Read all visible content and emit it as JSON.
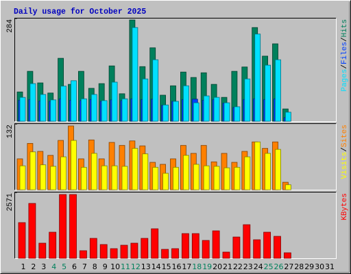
{
  "chart_data": [
    {
      "type": "bar",
      "title": "Daily usage for October 2025",
      "legend_separator": "/",
      "ylim": [
        0,
        284
      ],
      "yticks": [
        284
      ],
      "series": [
        {
          "name": "Hits",
          "color": "#00805c",
          "values": [
            81,
            138,
            106,
            78,
            174,
            102,
            138,
            91,
            104,
            153,
            76,
            280,
            151,
            203,
            72,
            98,
            136,
            121,
            134,
            102,
            66,
            138,
            150,
            259,
            180,
            214,
            34,
            0,
            0,
            0,
            0
          ]
        },
        {
          "name": "Files",
          "color": "#0040ff",
          "values": [
            58,
            60,
            56,
            55,
            62,
            58,
            57,
            60,
            55,
            59,
            57,
            62,
            60,
            61,
            44,
            55,
            60,
            61,
            58,
            60,
            50,
            38,
            60,
            62,
            60,
            62,
            10,
            0,
            0,
            0,
            0
          ]
        },
        {
          "name": "Pages",
          "color": "#00e0ff",
          "values": [
            66,
            104,
            74,
            59,
            97,
            112,
            62,
            74,
            57,
            108,
            62,
            259,
            117,
            170,
            45,
            55,
            98,
            51,
            70,
            66,
            51,
            40,
            117,
            241,
            155,
            170,
            25,
            0,
            0,
            0,
            0
          ]
        }
      ]
    },
    {
      "type": "bar",
      "legend_separator": "/",
      "ylim": [
        0,
        132
      ],
      "yticks": [
        132
      ],
      "series": [
        {
          "name": "Sites",
          "color": "#ff8000",
          "values": [
            62,
            93,
            77,
            69,
            99,
            128,
            62,
            100,
            62,
            95,
            89,
            98,
            88,
            55,
            51,
            62,
            89,
            73,
            89,
            56,
            73,
            55,
            77,
            96,
            83,
            96,
            15,
            0,
            0,
            0,
            0
          ]
        },
        {
          "name": "Visits",
          "color": "#ffff00",
          "values": [
            48,
            76,
            50,
            47,
            66,
            99,
            45,
            73,
            48,
            48,
            47,
            83,
            72,
            45,
            33,
            45,
            69,
            51,
            48,
            47,
            44,
            45,
            66,
            96,
            73,
            81,
            10,
            0,
            0,
            0,
            0
          ]
        }
      ]
    },
    {
      "type": "bar",
      "ylim": [
        0,
        2571
      ],
      "yticks": [
        2571
      ],
      "categories": [
        "1",
        "2",
        "3",
        "4",
        "5",
        "6",
        "7",
        "8",
        "9",
        "10",
        "11",
        "12",
        "13",
        "14",
        "15",
        "16",
        "17",
        "18",
        "19",
        "20",
        "21",
        "22",
        "23",
        "24",
        "25",
        "26",
        "27",
        "28",
        "29",
        "30",
        "31"
      ],
      "category_colors": [
        "#000",
        "#000",
        "#000",
        "#00805c",
        "#00805c",
        "#000",
        "#000",
        "#000",
        "#000",
        "#000",
        "#00805c",
        "#00805c",
        "#000",
        "#000",
        "#000",
        "#000",
        "#000",
        "#00805c",
        "#00805c",
        "#000",
        "#000",
        "#000",
        "#000",
        "#000",
        "#00805c",
        "#00805c",
        "#000",
        "#000",
        "#000",
        "#000",
        "#000"
      ],
      "series": [
        {
          "name": "KBytes",
          "color": "#ff0000",
          "values": [
            1393,
            2143,
            589,
            1018,
            2491,
            2491,
            295,
            777,
            536,
            375,
            509,
            589,
            777,
            1152,
            348,
            375,
            964,
            964,
            696,
            1071,
            241,
            830,
            1312,
            723,
            1018,
            857,
            214,
            0,
            0,
            0,
            0
          ]
        }
      ]
    }
  ]
}
